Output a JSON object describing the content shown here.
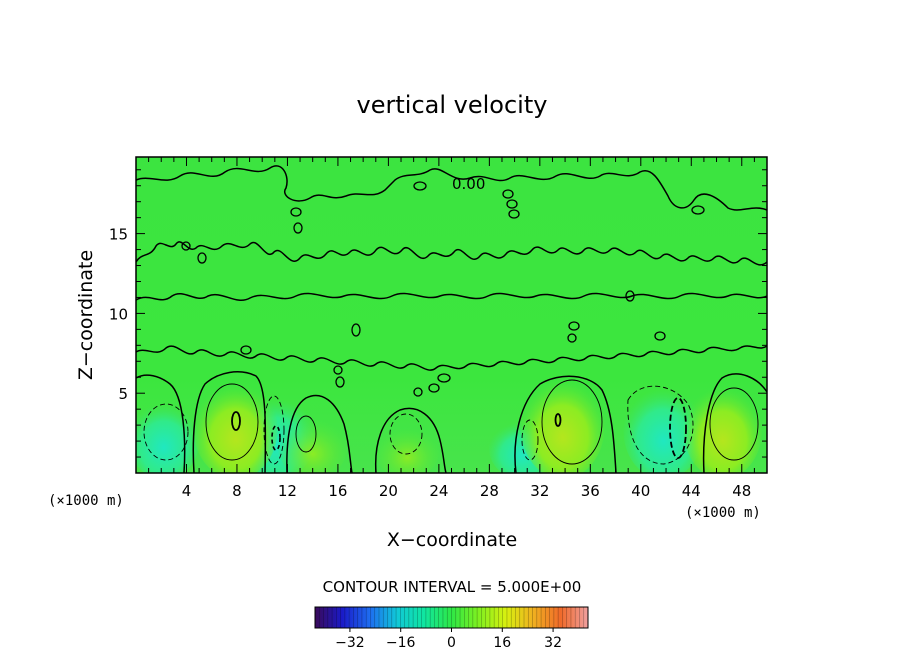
{
  "chart_data": {
    "type": "heatmap",
    "title": "vertical velocity",
    "xlabel": "X−coordinate",
    "ylabel": "Z−coordinate",
    "x_unit_label": "(×1000 m)",
    "x_unit_label_right": "(×1000 m)",
    "xlim": [
      0,
      50
    ],
    "ylim": [
      0,
      19.8
    ],
    "x_ticks": [
      4,
      8,
      12,
      16,
      20,
      24,
      28,
      32,
      36,
      40,
      44,
      48
    ],
    "y_ticks": [
      5,
      10,
      15
    ],
    "contour_interval_text": "CONTOUR INTERVAL = 5.000E+00",
    "colorbar": {
      "range": [
        -43,
        43
      ],
      "ticks": [
        -32,
        -16,
        0,
        16,
        32
      ],
      "tick_labels": [
        "−32",
        "−16",
        "0",
        "16",
        "32"
      ],
      "colors": [
        "#3a0a5a",
        "#1a1ac8",
        "#1e6cf0",
        "#10c8d8",
        "#10e6a0",
        "#2ee846",
        "#80f020",
        "#d8f010",
        "#f0b020",
        "#f06a2a",
        "#f0a0a0"
      ]
    },
    "annotations": [
      {
        "text": "0.00",
        "x": 24.6,
        "y": 18.0
      }
    ],
    "updraft_cells": [
      {
        "x": 7.9,
        "z_top": 5.5,
        "peak": 12
      },
      {
        "x": 14.0,
        "z_top": 3.2,
        "peak": 7
      },
      {
        "x": 21.5,
        "z_top": 2.6,
        "peak": 5
      },
      {
        "x": 33.8,
        "z_top": 5.8,
        "peak": 12
      },
      {
        "x": 46.5,
        "z_top": 5.3,
        "peak": 10
      }
    ],
    "downdraft_cells": [
      {
        "x": 2.2,
        "z_top": 4.2,
        "peak": -8
      },
      {
        "x": 11.1,
        "z_top": 4.5,
        "peak": -12
      },
      {
        "x": 30.6,
        "z_top": 3.0,
        "peak": -5
      },
      {
        "x": 41.8,
        "z_top": 5.2,
        "peak": -12
      }
    ]
  }
}
